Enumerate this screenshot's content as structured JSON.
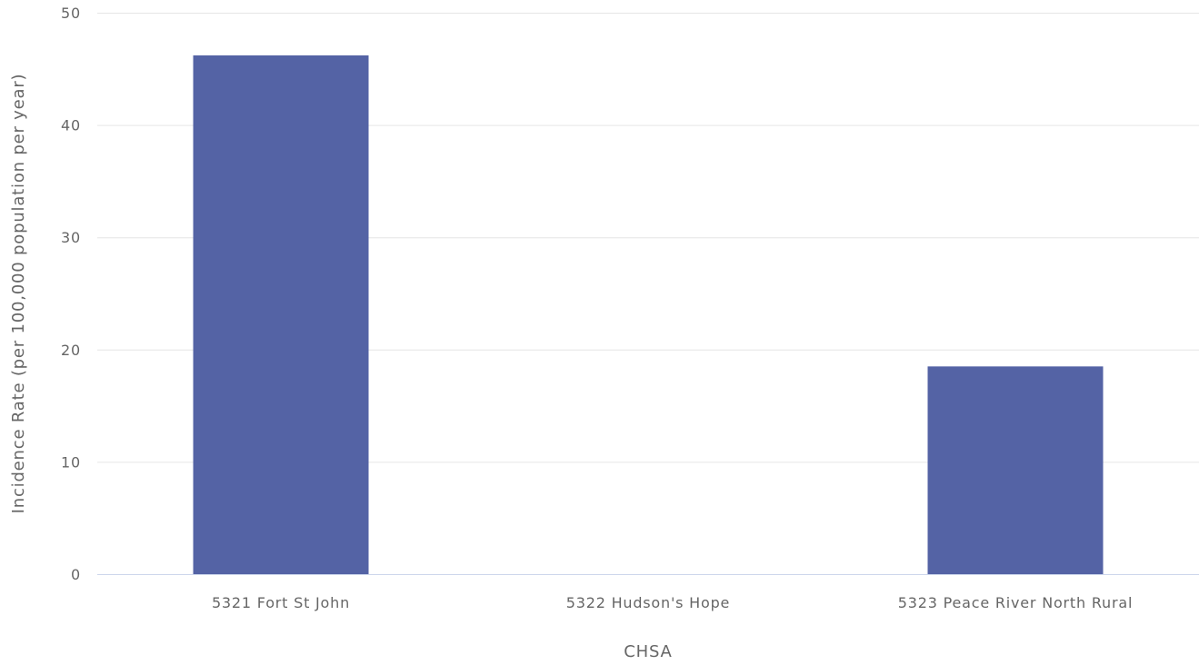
{
  "chart_data": {
    "type": "bar",
    "categories": [
      "5321 Fort St John",
      "5322 Hudson's Hope",
      "5323 Peace River North Rural"
    ],
    "series": [
      {
        "values": [
          46.2,
          0,
          18.5
        ]
      }
    ],
    "xlabel": "CHSA",
    "ylabel": "Incidence Rate (per 100,000 population per year)",
    "ylim": [
      0,
      50
    ],
    "yticks": [
      0,
      10,
      20,
      30,
      40,
      50
    ],
    "grid": true,
    "legend": "none",
    "colors": {
      "bar": "#5463a5",
      "grid": "#e6e6e6",
      "axis_line": "#ccd6eb",
      "text": "#666666"
    }
  }
}
